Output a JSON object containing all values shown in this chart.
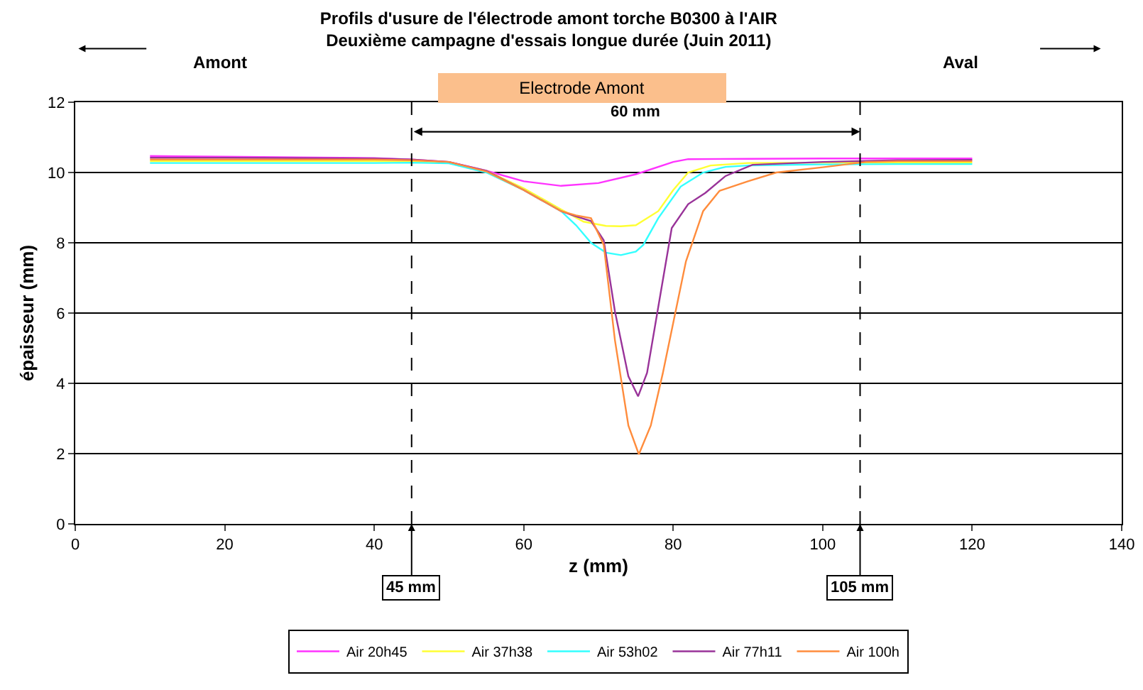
{
  "chart_data": {
    "type": "line",
    "title": "Profils d'usure de l'électrode amont torche B0300 à l'AIR",
    "subtitle": "Deuxième campagne d'essais longue durée (Juin 2011)",
    "xlabel": "z (mm)",
    "ylabel": "épaisseur (mm)",
    "xlim": [
      0,
      140
    ],
    "xticks": [
      0,
      20,
      40,
      60,
      80,
      100,
      120,
      140
    ],
    "ylim": [
      0,
      12
    ],
    "yticks": [
      0,
      2,
      4,
      6,
      8,
      10,
      12
    ],
    "grid": "y",
    "legend": "bottom",
    "marker": "none",
    "line_style": "solid",
    "series": [
      {
        "name": "Air 20h45",
        "color": "#ff33ff",
        "x": [
          10,
          20,
          30,
          40,
          45,
          50,
          55,
          60,
          65,
          70,
          75,
          80,
          82,
          90,
          100,
          110,
          120
        ],
        "values": [
          10.47,
          10.45,
          10.43,
          10.41,
          10.37,
          10.3,
          10.05,
          9.75,
          9.62,
          9.7,
          9.95,
          10.3,
          10.38,
          10.39,
          10.4,
          10.4,
          10.4
        ]
      },
      {
        "name": "Air 37h38",
        "color": "#ffff33",
        "x": [
          10,
          20,
          30,
          40,
          45,
          50,
          55,
          60,
          65,
          68,
          71,
          73,
          75,
          78,
          80,
          82,
          85,
          90,
          100,
          110,
          120
        ],
        "values": [
          10.32,
          10.32,
          10.32,
          10.32,
          10.31,
          10.28,
          10.05,
          9.55,
          8.95,
          8.6,
          8.48,
          8.47,
          8.5,
          8.9,
          9.5,
          10.0,
          10.2,
          10.27,
          10.28,
          10.28,
          10.28
        ]
      },
      {
        "name": "Air 53h02",
        "color": "#33ffff",
        "x": [
          10,
          20,
          30,
          40,
          45,
          50,
          55,
          60,
          65,
          67,
          69,
          71,
          73,
          75,
          76,
          78,
          81,
          84,
          87,
          90,
          100,
          110,
          120
        ],
        "values": [
          10.27,
          10.27,
          10.27,
          10.27,
          10.28,
          10.26,
          10.0,
          9.5,
          8.9,
          8.5,
          8.0,
          7.72,
          7.65,
          7.75,
          7.94,
          8.7,
          9.6,
          10.0,
          10.16,
          10.2,
          10.23,
          10.24,
          10.24
        ]
      },
      {
        "name": "Air 77h11",
        "color": "#993399",
        "x": [
          10,
          20,
          30,
          40,
          45,
          50,
          55,
          60,
          65,
          67,
          69,
          70.7,
          72.2,
          74,
          75.3,
          76.5,
          77.9,
          79.8,
          82,
          84.3,
          87,
          90.6,
          100,
          110,
          120
        ],
        "values": [
          10.42,
          10.42,
          10.41,
          10.4,
          10.37,
          10.3,
          10.05,
          9.5,
          8.9,
          8.75,
          8.62,
          8.07,
          6.05,
          4.2,
          3.63,
          4.3,
          6.05,
          8.42,
          9.1,
          9.42,
          9.9,
          10.22,
          10.3,
          10.35,
          10.36
        ]
      },
      {
        "name": "Air 100h",
        "color": "#ff8c3c",
        "x": [
          10,
          20,
          30,
          40,
          45,
          50,
          55,
          60,
          65,
          67,
          69,
          70.7,
          72.2,
          74,
          75.4,
          77,
          78.6,
          81.7,
          84,
          86.2,
          90,
          93.8,
          100,
          105.8,
          110,
          120
        ],
        "values": [
          10.37,
          10.37,
          10.37,
          10.37,
          10.35,
          10.3,
          10.03,
          9.5,
          8.9,
          8.78,
          8.7,
          7.94,
          5.23,
          2.8,
          1.98,
          2.8,
          4.28,
          7.47,
          8.9,
          9.48,
          9.75,
          10.0,
          10.15,
          10.3,
          10.32,
          10.32
        ]
      }
    ],
    "ref_lines": [
      {
        "axis": "x",
        "value": 45,
        "label": "45 mm",
        "color": "#000000",
        "line_style": "dashed"
      },
      {
        "axis": "x",
        "value": 105,
        "label": "105 mm",
        "color": "#000000",
        "line_style": "dashed"
      }
    ],
    "annotations": [
      "Amont",
      "Aval",
      "Electrode Amont",
      "60 mm"
    ]
  }
}
